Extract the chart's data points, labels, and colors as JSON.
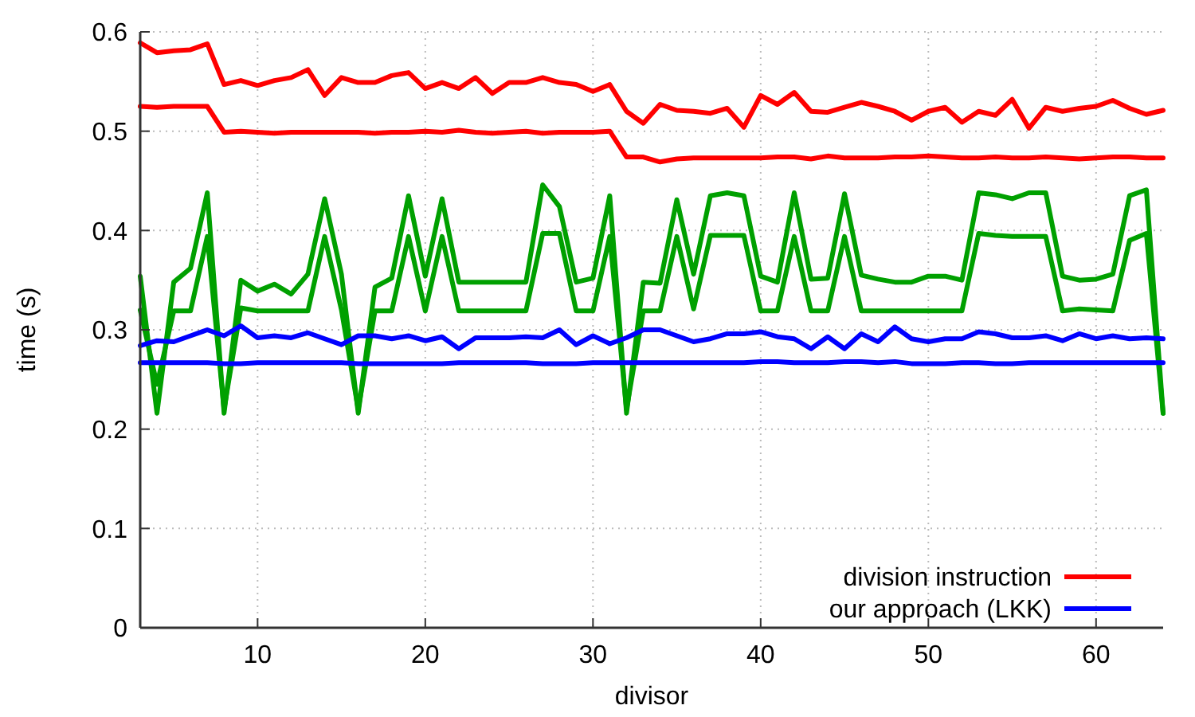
{
  "chart_data": {
    "type": "line",
    "xlabel": "divisor",
    "ylabel": "time (s)",
    "xlim": [
      3,
      64
    ],
    "xticks": [
      10,
      20,
      30,
      40,
      50,
      60
    ],
    "ylim": [
      0,
      0.6
    ],
    "yticks": [
      0,
      {
        "value": 0.1,
        "label": "0.1"
      },
      {
        "value": 0.2,
        "label": "0.2"
      },
      {
        "value": 0.3,
        "label": "0.3"
      },
      {
        "value": 0.4,
        "label": "0.4"
      },
      {
        "value": 0.5,
        "label": "0.5"
      },
      {
        "value": 0.6,
        "label": "0.6"
      }
    ],
    "grid": true,
    "legend": "bottom right",
    "line_style": "solid",
    "marker": "none",
    "x": [
      3,
      4,
      5,
      6,
      7,
      8,
      9,
      10,
      11,
      12,
      13,
      14,
      15,
      16,
      17,
      18,
      19,
      20,
      21,
      22,
      23,
      24,
      25,
      26,
      27,
      28,
      29,
      30,
      31,
      32,
      33,
      34,
      35,
      36,
      37,
      38,
      39,
      40,
      41,
      42,
      43,
      44,
      45,
      46,
      47,
      48,
      49,
      50,
      51,
      52,
      53,
      54,
      55,
      56,
      57,
      58,
      59,
      60,
      61,
      62,
      63,
      64
    ],
    "series": [
      {
        "name": "division instruction",
        "color": "#ff0000",
        "values": [
          0.589,
          0.579,
          0.581,
          0.582,
          0.588,
          0.547,
          0.551,
          0.546,
          0.551,
          0.554,
          0.562,
          0.536,
          0.554,
          0.549,
          0.549,
          0.556,
          0.559,
          0.543,
          0.549,
          0.543,
          0.554,
          0.538,
          0.549,
          0.549,
          0.554,
          0.549,
          0.547,
          0.54,
          0.547,
          0.52,
          0.508,
          0.527,
          0.521,
          0.52,
          0.518,
          0.523,
          0.504,
          0.536,
          0.527,
          0.539,
          0.52,
          0.519,
          0.524,
          0.529,
          0.525,
          0.52,
          0.511,
          0.52,
          0.524,
          0.509,
          0.52,
          0.516,
          0.532,
          0.503,
          0.524,
          0.52,
          0.523,
          0.525,
          0.531,
          0.523,
          0.517,
          0.521
        ]
      },
      {
        "color": "#ff0000",
        "values": [
          0.525,
          0.524,
          0.525,
          0.525,
          0.525,
          0.499,
          0.5,
          0.499,
          0.498,
          0.499,
          0.499,
          0.499,
          0.499,
          0.499,
          0.498,
          0.499,
          0.499,
          0.5,
          0.499,
          0.501,
          0.499,
          0.498,
          0.499,
          0.5,
          0.498,
          0.499,
          0.499,
          0.499,
          0.5,
          0.474,
          0.474,
          0.469,
          0.472,
          0.473,
          0.473,
          0.473,
          0.473,
          0.473,
          0.474,
          0.474,
          0.472,
          0.475,
          0.473,
          0.473,
          0.473,
          0.474,
          0.474,
          0.475,
          0.474,
          0.473,
          0.473,
          0.474,
          0.473,
          0.473,
          0.474,
          0.473,
          0.472,
          0.473,
          0.474,
          0.474,
          0.473,
          0.473
        ]
      },
      {
        "color": "#00a000",
        "values": [
          0.354,
          0.216,
          0.348,
          0.362,
          0.438,
          0.216,
          0.35,
          0.339,
          0.346,
          0.336,
          0.356,
          0.432,
          0.356,
          0.216,
          0.343,
          0.352,
          0.435,
          0.354,
          0.432,
          0.348,
          0.348,
          0.348,
          0.348,
          0.348,
          0.446,
          0.424,
          0.348,
          0.352,
          0.435,
          0.216,
          0.348,
          0.347,
          0.431,
          0.356,
          0.435,
          0.438,
          0.435,
          0.354,
          0.348,
          0.438,
          0.351,
          0.352,
          0.437,
          0.355,
          0.351,
          0.348,
          0.348,
          0.354,
          0.354,
          0.35,
          0.438,
          0.436,
          0.432,
          0.438,
          0.438,
          0.354,
          0.35,
          0.351,
          0.356,
          0.435,
          0.441,
          0.216
        ]
      },
      {
        "color": "#00a000",
        "values": [
          0.32,
          0.245,
          0.319,
          0.319,
          0.394,
          0.22,
          0.322,
          0.319,
          0.319,
          0.319,
          0.319,
          0.394,
          0.32,
          0.22,
          0.319,
          0.319,
          0.394,
          0.319,
          0.394,
          0.319,
          0.319,
          0.319,
          0.319,
          0.319,
          0.397,
          0.397,
          0.319,
          0.319,
          0.394,
          0.22,
          0.319,
          0.319,
          0.394,
          0.321,
          0.395,
          0.395,
          0.395,
          0.319,
          0.319,
          0.394,
          0.319,
          0.319,
          0.394,
          0.319,
          0.319,
          0.319,
          0.319,
          0.319,
          0.319,
          0.319,
          0.397,
          0.395,
          0.394,
          0.394,
          0.394,
          0.319,
          0.321,
          0.32,
          0.319,
          0.39,
          0.397,
          0.216
        ]
      },
      {
        "name": "our approach (LKK)",
        "color": "#0000ff",
        "values": [
          0.284,
          0.289,
          0.288,
          0.294,
          0.3,
          0.294,
          0.304,
          0.292,
          0.294,
          0.292,
          0.297,
          0.291,
          0.285,
          0.294,
          0.294,
          0.291,
          0.294,
          0.289,
          0.293,
          0.281,
          0.292,
          0.292,
          0.292,
          0.293,
          0.292,
          0.3,
          0.285,
          0.294,
          0.286,
          0.292,
          0.3,
          0.3,
          0.294,
          0.288,
          0.291,
          0.296,
          0.296,
          0.298,
          0.293,
          0.291,
          0.281,
          0.293,
          0.281,
          0.296,
          0.288,
          0.303,
          0.291,
          0.288,
          0.291,
          0.291,
          0.298,
          0.296,
          0.292,
          0.292,
          0.294,
          0.289,
          0.296,
          0.291,
          0.294,
          0.291,
          0.292,
          0.291
        ]
      },
      {
        "color": "#0000ff",
        "values": [
          0.267,
          0.267,
          0.267,
          0.267,
          0.267,
          0.266,
          0.266,
          0.267,
          0.267,
          0.267,
          0.267,
          0.267,
          0.267,
          0.266,
          0.266,
          0.266,
          0.266,
          0.266,
          0.266,
          0.267,
          0.267,
          0.267,
          0.267,
          0.267,
          0.266,
          0.266,
          0.266,
          0.267,
          0.267,
          0.267,
          0.267,
          0.267,
          0.267,
          0.267,
          0.267,
          0.267,
          0.267,
          0.268,
          0.268,
          0.267,
          0.267,
          0.267,
          0.268,
          0.268,
          0.267,
          0.268,
          0.266,
          0.266,
          0.266,
          0.267,
          0.267,
          0.266,
          0.266,
          0.267,
          0.267,
          0.267,
          0.267,
          0.267,
          0.267,
          0.267,
          0.267,
          0.267
        ]
      }
    ]
  }
}
